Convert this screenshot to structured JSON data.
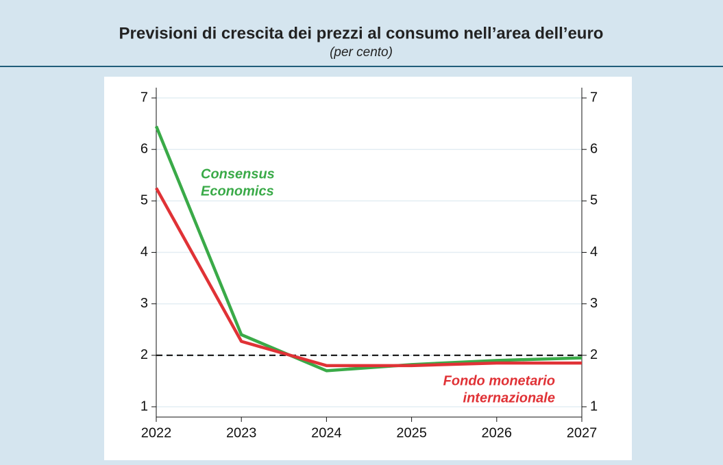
{
  "chart_data": {
    "type": "line",
    "title": "Previsioni di crescita dei prezzi al consumo nell’area dell’euro",
    "subtitle": "(per cento)",
    "x": [
      2022,
      2023,
      2024,
      2025,
      2026,
      2027
    ],
    "xlim": [
      2022,
      2027
    ],
    "xticks": [
      2022,
      2023,
      2024,
      2025,
      2026,
      2027
    ],
    "ylim": [
      0.8,
      7.2
    ],
    "yticks": [
      1,
      2,
      3,
      4,
      5,
      6,
      7
    ],
    "y2lim": [
      0.8,
      7.2
    ],
    "y2ticks": [
      1,
      2,
      3,
      4,
      5,
      6,
      7
    ],
    "grid": true,
    "reference_line": 2,
    "series": [
      {
        "name": [
          "Consensus",
          "Economics"
        ],
        "color": "#3aaa48",
        "values": [
          6.45,
          2.4,
          1.7,
          1.82,
          1.9,
          1.95
        ]
      },
      {
        "name": [
          "Fondo monetario",
          "internazionale"
        ],
        "color": "#e03236",
        "values": [
          5.25,
          2.27,
          1.8,
          1.8,
          1.85,
          1.85
        ]
      }
    ]
  }
}
